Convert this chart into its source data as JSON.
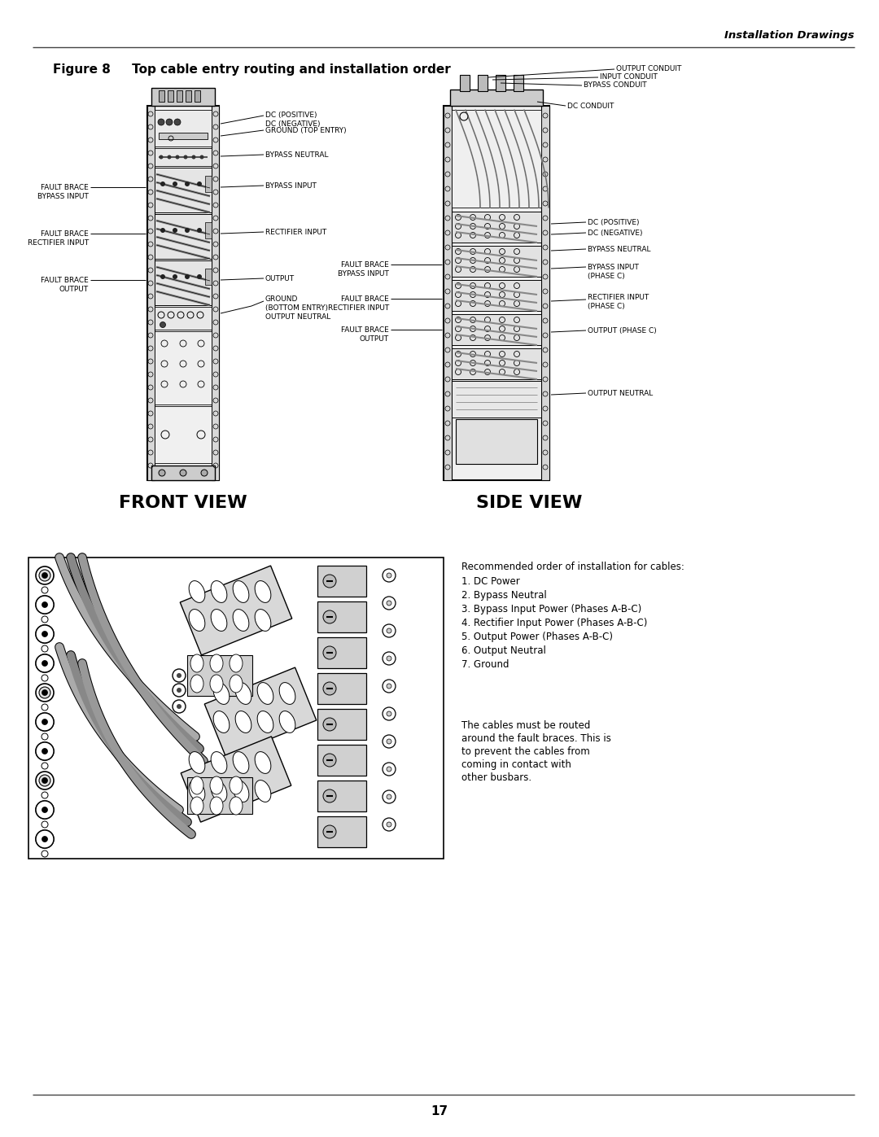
{
  "page_title": "Installation Drawings",
  "figure_title": "Figure 8     Top cable entry routing and installation order",
  "page_number": "17",
  "front_view_label": "FRONT VIEW",
  "side_view_label": "SIDE VIEW",
  "recommended_order_title": "Recommended order of installation for cables:",
  "recommended_order_items": [
    "1. DC Power",
    "2. Bypass Neutral",
    "3. Bypass Input Power (Phases A-B-C)",
    "4. Rectifier Input Power (Phases A-B-C)",
    "5. Output Power (Phases A-B-C)",
    "6. Output Neutral",
    "7. Ground"
  ],
  "cable_note": "The cables must be routed\naround the fault braces. This is\nto prevent the cables from\ncoming in contact with\nother busbars.",
  "bg_color": "#ffffff",
  "text_color": "#000000",
  "line_color": "#000000"
}
